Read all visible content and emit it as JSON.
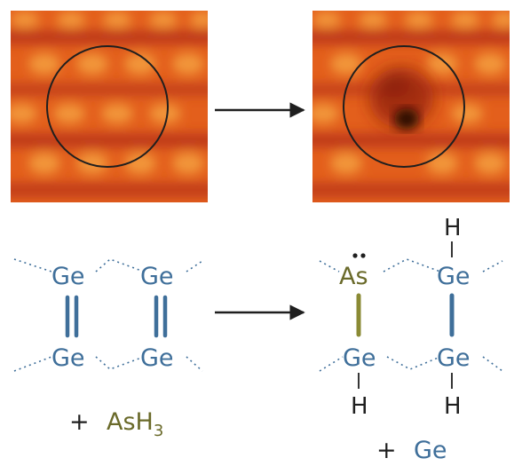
{
  "colors": {
    "ge": "#3f6f9a",
    "as": "#6a6a2a",
    "text": "#1f1f1f",
    "bond": "#3f6f9a",
    "as_bond": "#8a8a34",
    "stm_base": "#e35f1c",
    "stm_bright": "#f4a040",
    "stm_dark": "#a82a10"
  },
  "icons": {
    "reaction_arrow": "right-arrow-icon"
  },
  "images": [
    {
      "name": "stm-before",
      "description": "STM image of Ge dimer surface, circled region"
    },
    {
      "name": "stm-after",
      "description": "STM image after reaction, dark depression in circle"
    }
  ],
  "before": {
    "atoms": [
      "Ge",
      "Ge",
      "Ge",
      "Ge"
    ],
    "reagent_plus": "+",
    "reagent_main": "AsH",
    "reagent_sub": "3"
  },
  "after": {
    "top_left": "As",
    "top_right": "Ge",
    "bottom_left": "Ge",
    "bottom_right": "Ge",
    "h_top_right": "H",
    "h_bottom_left": "H",
    "h_bottom_right": "H",
    "product_plus": "+",
    "product": "Ge"
  }
}
